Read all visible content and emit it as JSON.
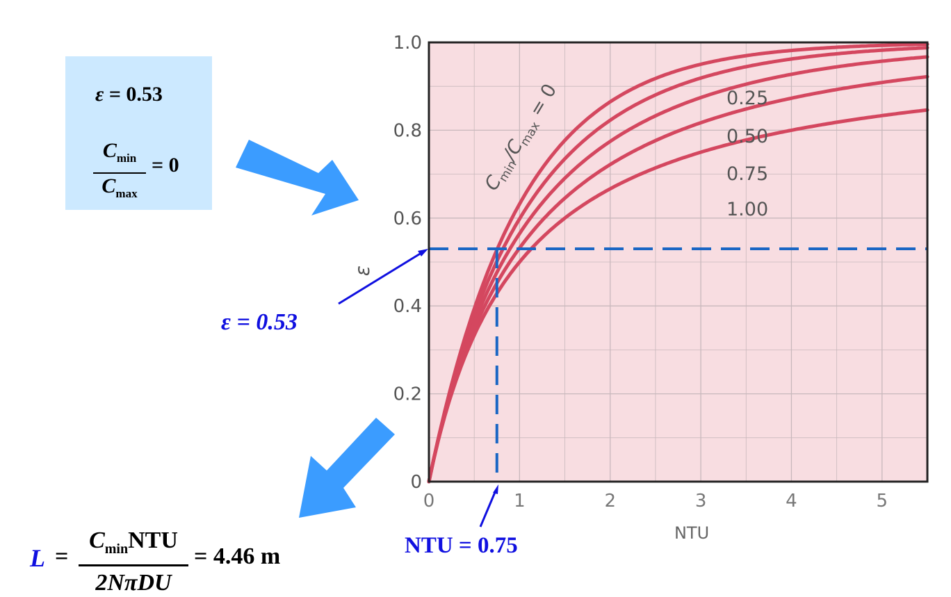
{
  "givens": {
    "epsilon_symbol": "ε",
    "equals": "=",
    "epsilon_value": "0.53",
    "ratio_num": "C",
    "ratio_num_sub": "min",
    "ratio_den": "C",
    "ratio_den_sub": "max",
    "ratio_value": "0"
  },
  "annotations": {
    "epsilon_label": "ε = 0.53",
    "ntu_label": "NTU = 0.75"
  },
  "formula": {
    "lhs": "L",
    "equals": "=",
    "numerator_c": "C",
    "numerator_sub": "min",
    "numerator_ntu": "NTU",
    "denominator": "2NπDU",
    "result": "= 4.46 m"
  },
  "colors": {
    "arrow": "#3b9cff",
    "guide": "#1a66c4",
    "curve": "#d4475f",
    "plot_bg": "#f8dde1",
    "grid": "#c8b8bc",
    "annotation_text": "#1010e0"
  },
  "chart_data": {
    "type": "line",
    "xlabel": "NTU",
    "ylabel": "ε",
    "xlim": [
      0,
      5.5
    ],
    "ylim": [
      0,
      1.0
    ],
    "x_ticks": [
      "0",
      "1",
      "2",
      "3",
      "4",
      "5"
    ],
    "y_ticks": [
      "0",
      "0.2",
      "0.4",
      "0.6",
      "0.8",
      "1.0"
    ],
    "grid": true,
    "series_labels": [
      "C_min/C_max = 0",
      "0.25",
      "0.50",
      "0.75",
      "1.00"
    ],
    "label_ratio_prefix": "C",
    "label_ratio_sub1": "min",
    "label_ratio_slash": "/C",
    "label_ratio_sub2": "max",
    "label_ratio_eq": " = 0",
    "series": [
      {
        "name": "0",
        "cr": 0.0
      },
      {
        "name": "0.25",
        "cr": 0.25
      },
      {
        "name": "0.50",
        "cr": 0.5
      },
      {
        "name": "0.75",
        "cr": 0.75
      },
      {
        "name": "1.00",
        "cr": 1.0
      }
    ],
    "marked_point": {
      "x": 0.75,
      "y": 0.53
    }
  }
}
